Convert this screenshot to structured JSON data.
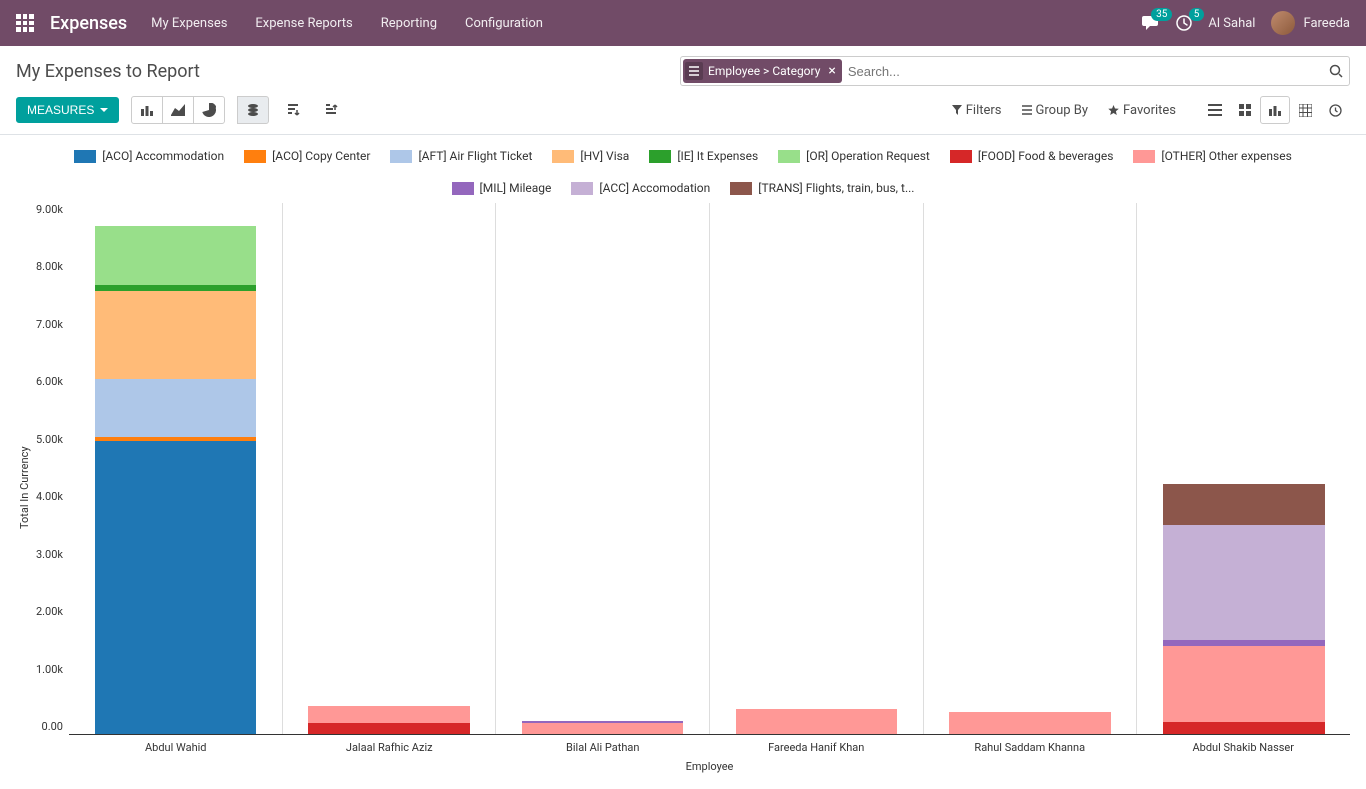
{
  "navbar": {
    "brand": "Expenses",
    "menu": [
      "My Expenses",
      "Expense Reports",
      "Reporting",
      "Configuration"
    ],
    "messages_count": "35",
    "activities_count": "5",
    "company": "Al Sahal",
    "user": "Fareeda"
  },
  "page": {
    "title": "My Expenses to Report",
    "search_facet_label": "Employee > Category",
    "search_placeholder": "Search...",
    "measures_label": "MEASURES",
    "filters_label": "Filters",
    "groupby_label": "Group By",
    "favorites_label": "Favorites"
  },
  "chart": {
    "type": "stacked-bar",
    "y_axis_label": "Total In Currency",
    "x_axis_label": "Employee",
    "y_max": 9000,
    "y_ticks": [
      "9.00k",
      "8.00k",
      "7.00k",
      "6.00k",
      "5.00k",
      "4.00k",
      "3.00k",
      "2.00k",
      "1.00k",
      "0.00"
    ],
    "categories": [
      "Abdul  Wahid",
      "Jalaal Rafhic Aziz",
      "Bilal Ali Pathan",
      "Fareeda Hanif Khan",
      "Rahul Saddam Khanna",
      "Abdul Shakib Nasser"
    ],
    "series": [
      {
        "key": "aco_accom",
        "label": "[ACO] Accommodation",
        "color": "#1f77b4"
      },
      {
        "key": "aco_copy",
        "label": "[ACO] Copy Center",
        "color": "#ff7f0e"
      },
      {
        "key": "aft",
        "label": "[AFT] Air Flight Ticket",
        "color": "#aec7e8"
      },
      {
        "key": "hv",
        "label": "[HV] Visa",
        "color": "#ffbb78"
      },
      {
        "key": "ie",
        "label": "[IE] It Expenses",
        "color": "#2ca02c"
      },
      {
        "key": "or",
        "label": "[OR] Operation Request",
        "color": "#98df8a"
      },
      {
        "key": "food",
        "label": "[FOOD] Food & beverages",
        "color": "#d62728"
      },
      {
        "key": "other",
        "label": "[OTHER] Other expenses",
        "color": "#ff9896"
      },
      {
        "key": "mil",
        "label": "[MIL] Mileage",
        "color": "#9467bd"
      },
      {
        "key": "acc",
        "label": "[ACC] Accomodation",
        "color": "#c5b0d5"
      },
      {
        "key": "trans",
        "label": "[TRANS] Flights, train, bus, t...",
        "color": "#8c564b"
      }
    ],
    "data": [
      {
        "aco_accom": 5000,
        "aco_copy": 60,
        "aft": 1000,
        "hv": 1500,
        "ie": 100,
        "or": 1000
      },
      {
        "food": 180,
        "other": 300
      },
      {
        "other": 190,
        "mil": 40
      },
      {
        "other": 430
      },
      {
        "other": 370
      },
      {
        "food": 200,
        "other": 1300,
        "mil": 100,
        "acc": 1970,
        "trans": 700
      }
    ],
    "background_color": "#ffffff",
    "grid_color": "#dddddd"
  }
}
